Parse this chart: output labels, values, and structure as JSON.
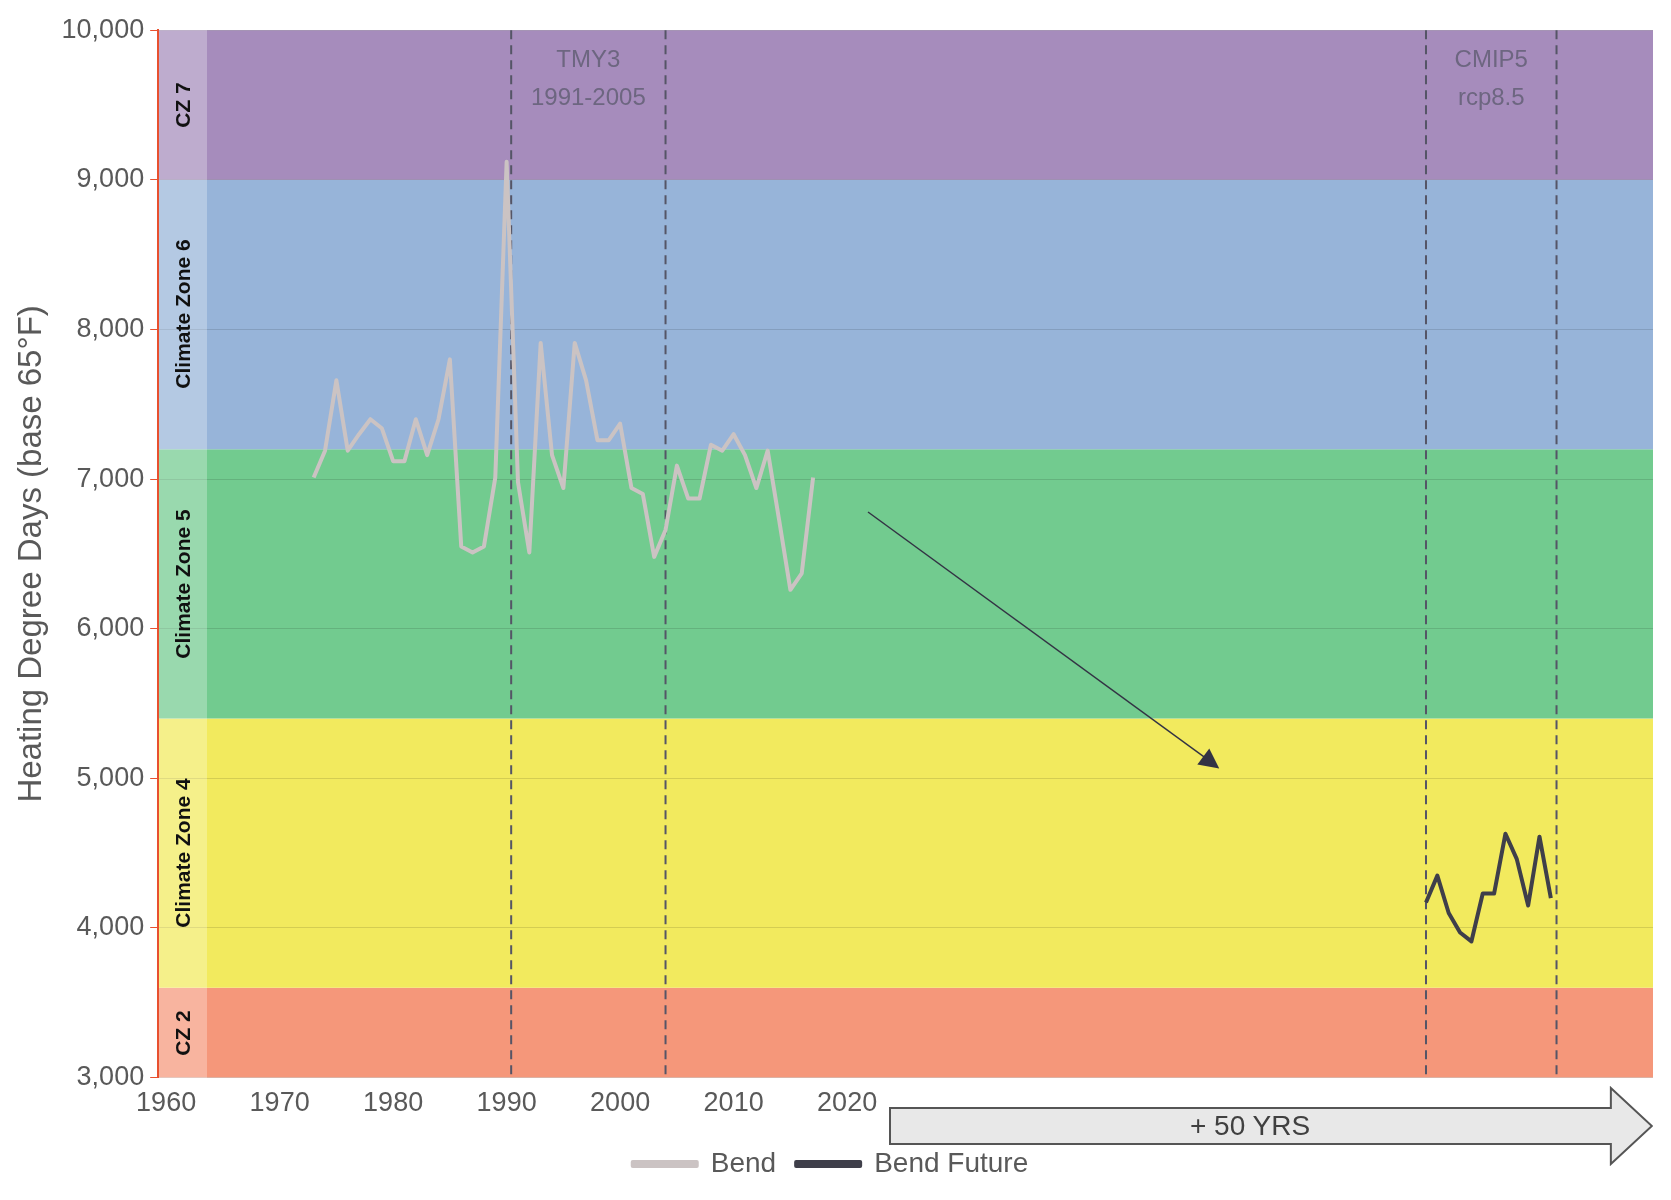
{
  "chart_data": {
    "type": "line",
    "ylabel": "Heating Degree Days (base 65°F)",
    "xlim": [
      1959.3,
      2091
    ],
    "xticks": [
      1960,
      1970,
      1980,
      1990,
      2000,
      2010,
      2020
    ],
    "ylim": [
      3000,
      10000
    ],
    "yticks": [
      {
        "value": 3000,
        "label": "3,000"
      },
      {
        "value": 4000,
        "label": "4,000"
      },
      {
        "value": 5000,
        "label": "5,000"
      },
      {
        "value": 6000,
        "label": "6,000"
      },
      {
        "value": 7000,
        "label": "7,000"
      },
      {
        "value": 8000,
        "label": "8,000"
      },
      {
        "value": 9000,
        "label": "9,000"
      },
      {
        "value": 10000,
        "label": "10,000"
      }
    ],
    "grid": "y",
    "legend": "bottom",
    "series": [
      {
        "name": "Bend",
        "color": "#cbc3c3",
        "x": [
          1973,
          1974,
          1975,
          1976,
          1977,
          1978,
          1979,
          1980,
          1981,
          1982,
          1983,
          1984,
          1985,
          1986,
          1987,
          1988,
          1989,
          1990,
          1991,
          1992,
          1993,
          1994,
          1995,
          1996,
          1997,
          1998,
          1999,
          2000,
          2001,
          2002,
          2003,
          2004,
          2005,
          2006,
          2007,
          2008,
          2009,
          2010,
          2011,
          2012,
          2013,
          2014,
          2015,
          2016,
          2017
        ],
        "values": [
          7010,
          7190,
          7660,
          7190,
          7300,
          7400,
          7340,
          7120,
          7120,
          7400,
          7160,
          7400,
          7800,
          6550,
          6510,
          6550,
          7010,
          9120,
          6980,
          6510,
          7910,
          7160,
          6940,
          7910,
          7660,
          7260,
          7260,
          7370,
          6940,
          6900,
          6480,
          6660,
          7090,
          6870,
          6870,
          7230,
          7190,
          7300,
          7160,
          6940,
          7190,
          6730,
          6260,
          6370,
          7010
        ]
      },
      {
        "name": "Bend Future",
        "color": "#3f3f4a",
        "x": [
          2071,
          2072,
          2073,
          2074,
          2075,
          2076,
          2077,
          2078,
          2079,
          2080,
          2081,
          2082
        ],
        "values": [
          4170,
          4350,
          4100,
          3970,
          3910,
          4230,
          4230,
          4630,
          4460,
          4150,
          4610,
          4200
        ]
      }
    ],
    "bands": [
      {
        "axis": "y",
        "from": 3000,
        "to": 3600,
        "label": "CZ 2",
        "color": "#f5977a"
      },
      {
        "axis": "y",
        "from": 3600,
        "to": 5400,
        "label": "Climate Zone 4",
        "color": "#f2ea5e"
      },
      {
        "axis": "y",
        "from": 5400,
        "to": 7200,
        "label": "Climate Zone 5",
        "color": "#72cb8f"
      },
      {
        "axis": "y",
        "from": 7200,
        "to": 9000,
        "label": "Climate Zone 6",
        "color": "#97b4d9"
      },
      {
        "axis": "y",
        "from": 9000,
        "to": 10000,
        "label": "CZ 7",
        "color": "#a68cbc"
      }
    ],
    "ref_lines": [
      {
        "axis": "x",
        "value": 1990.4,
        "label": "TMY3 1991-2005",
        "line_style": "dashed",
        "color": "#555566"
      },
      {
        "axis": "x",
        "value": 2004,
        "line_style": "dashed",
        "color": "#555566"
      },
      {
        "axis": "x",
        "value": 2071,
        "label": "CMIP5 rcp8.5",
        "line_style": "dashed",
        "color": "#555566"
      },
      {
        "axis": "x",
        "value": 2082.5,
        "line_style": "dashed",
        "color": "#555566"
      }
    ],
    "annotations": [
      "+ 50 YRS"
    ]
  }
}
